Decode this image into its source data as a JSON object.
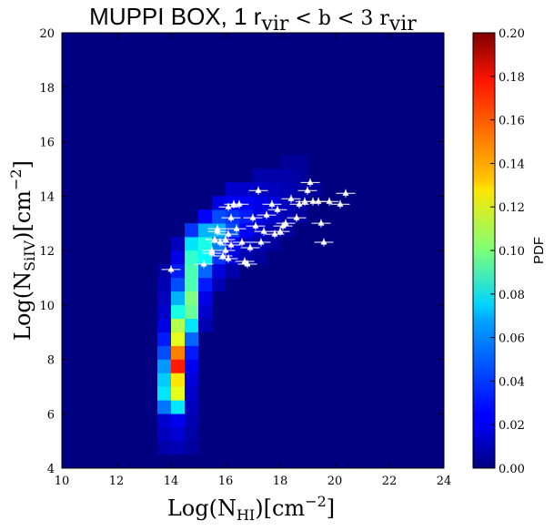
{
  "chart_data": {
    "type": "heatmap",
    "title": "MUPPI BOX, 1 r",
    "title_sub1": "vir",
    "title_mid": " < b < 3 r",
    "title_sub2": "vir",
    "xlabel_main": "Log(N",
    "xlabel_sub": "HI",
    "xlabel_tail": ")[cm",
    "xlabel_sup": "−2",
    "xlabel_close": "]",
    "ylabel_main": "Log(N",
    "ylabel_sub": "SiIV",
    "ylabel_tail": ")[cm",
    "ylabel_sup": "−2",
    "ylabel_close": "]",
    "xlim": [
      10,
      24
    ],
    "ylim": [
      4,
      20
    ],
    "xticks": [
      "10",
      "12",
      "14",
      "16",
      "18",
      "20",
      "22",
      "24"
    ],
    "yticks": [
      "4",
      "6",
      "8",
      "10",
      "12",
      "14",
      "16",
      "18",
      "20"
    ],
    "colorbar": {
      "label": "PDF",
      "range": [
        0.0,
        0.2
      ],
      "ticks": [
        "0.00",
        "0.02",
        "0.04",
        "0.06",
        "0.08",
        "0.10",
        "0.12",
        "0.14",
        "0.16",
        "0.18",
        "0.20"
      ]
    },
    "bin_width_x": 0.5,
    "bin_width_y": 0.5,
    "background_value": 0.0,
    "cells": [
      [
        13.5,
        4.5,
        0.008
      ],
      [
        14.0,
        4.5,
        0.01
      ],
      [
        14.5,
        4.5,
        0.006
      ],
      [
        13.5,
        5.0,
        0.012
      ],
      [
        14.0,
        5.0,
        0.016
      ],
      [
        14.5,
        5.0,
        0.008
      ],
      [
        13.5,
        5.5,
        0.016
      ],
      [
        14.0,
        5.5,
        0.022
      ],
      [
        14.5,
        5.5,
        0.01
      ],
      [
        13.5,
        6.0,
        0.048
      ],
      [
        14.0,
        6.0,
        0.07
      ],
      [
        14.5,
        6.0,
        0.012
      ],
      [
        13.5,
        6.5,
        0.07
      ],
      [
        14.0,
        6.5,
        0.12
      ],
      [
        14.5,
        6.5,
        0.015
      ],
      [
        13.5,
        7.0,
        0.065
      ],
      [
        14.0,
        7.0,
        0.13
      ],
      [
        14.5,
        7.0,
        0.018
      ],
      [
        13.5,
        7.5,
        0.055
      ],
      [
        14.0,
        7.5,
        0.17
      ],
      [
        14.5,
        7.5,
        0.022
      ],
      [
        13.5,
        8.0,
        0.04
      ],
      [
        14.0,
        8.0,
        0.15
      ],
      [
        14.5,
        8.0,
        0.03
      ],
      [
        13.5,
        8.5,
        0.03
      ],
      [
        14.0,
        8.5,
        0.12
      ],
      [
        14.5,
        8.5,
        0.045
      ],
      [
        13.5,
        9.0,
        0.02
      ],
      [
        14.0,
        9.0,
        0.11
      ],
      [
        14.5,
        9.0,
        0.07
      ],
      [
        15.0,
        9.0,
        0.01
      ],
      [
        13.5,
        9.5,
        0.015
      ],
      [
        14.0,
        9.5,
        0.08
      ],
      [
        14.5,
        9.5,
        0.095
      ],
      [
        15.0,
        9.5,
        0.015
      ],
      [
        13.5,
        10.0,
        0.012
      ],
      [
        14.0,
        10.0,
        0.06
      ],
      [
        14.5,
        10.0,
        0.1
      ],
      [
        15.0,
        10.0,
        0.02
      ],
      [
        13.5,
        10.5,
        0.01
      ],
      [
        14.0,
        10.5,
        0.04
      ],
      [
        14.5,
        10.5,
        0.09
      ],
      [
        15.0,
        10.5,
        0.03
      ],
      [
        15.5,
        10.5,
        0.01
      ],
      [
        13.5,
        11.0,
        0.008
      ],
      [
        14.0,
        11.0,
        0.03
      ],
      [
        14.5,
        11.0,
        0.09
      ],
      [
        15.0,
        11.0,
        0.045
      ],
      [
        15.5,
        11.0,
        0.018
      ],
      [
        16.0,
        11.0,
        0.008
      ],
      [
        14.0,
        11.5,
        0.02
      ],
      [
        14.5,
        11.5,
        0.085
      ],
      [
        15.0,
        11.5,
        0.075
      ],
      [
        15.5,
        11.5,
        0.035
      ],
      [
        16.0,
        11.5,
        0.018
      ],
      [
        16.5,
        11.5,
        0.01
      ],
      [
        17.0,
        11.5,
        0.006
      ],
      [
        14.0,
        12.0,
        0.012
      ],
      [
        14.5,
        12.0,
        0.07
      ],
      [
        15.0,
        12.0,
        0.08
      ],
      [
        15.5,
        12.0,
        0.05
      ],
      [
        16.0,
        12.0,
        0.025
      ],
      [
        16.5,
        12.0,
        0.015
      ],
      [
        17.0,
        12.0,
        0.01
      ],
      [
        17.5,
        12.0,
        0.006
      ],
      [
        14.5,
        12.5,
        0.035
      ],
      [
        15.0,
        12.5,
        0.06
      ],
      [
        15.5,
        12.5,
        0.06
      ],
      [
        16.0,
        12.5,
        0.04
      ],
      [
        16.5,
        12.5,
        0.025
      ],
      [
        17.0,
        12.5,
        0.015
      ],
      [
        17.5,
        12.5,
        0.01
      ],
      [
        18.0,
        12.5,
        0.006
      ],
      [
        15.0,
        13.0,
        0.025
      ],
      [
        15.5,
        13.0,
        0.04
      ],
      [
        16.0,
        13.0,
        0.035
      ],
      [
        16.5,
        13.0,
        0.03
      ],
      [
        17.0,
        13.0,
        0.02
      ],
      [
        17.5,
        13.0,
        0.015
      ],
      [
        18.0,
        13.0,
        0.01
      ],
      [
        18.5,
        13.0,
        0.006
      ],
      [
        15.5,
        13.5,
        0.02
      ],
      [
        16.0,
        13.5,
        0.025
      ],
      [
        16.5,
        13.5,
        0.025
      ],
      [
        17.0,
        13.5,
        0.02
      ],
      [
        17.5,
        13.5,
        0.018
      ],
      [
        18.0,
        13.5,
        0.012
      ],
      [
        18.5,
        13.5,
        0.008
      ],
      [
        16.0,
        14.0,
        0.015
      ],
      [
        16.5,
        14.0,
        0.015
      ],
      [
        17.0,
        14.0,
        0.014
      ],
      [
        17.5,
        14.0,
        0.012
      ],
      [
        18.0,
        14.0,
        0.01
      ],
      [
        18.5,
        14.0,
        0.008
      ],
      [
        19.0,
        14.0,
        0.006
      ],
      [
        17.0,
        14.5,
        0.008
      ],
      [
        17.5,
        14.5,
        0.008
      ],
      [
        18.0,
        14.5,
        0.008
      ],
      [
        18.5,
        14.5,
        0.006
      ],
      [
        18.0,
        15.0,
        0.005
      ],
      [
        18.5,
        15.0,
        0.005
      ]
    ],
    "points": [
      [
        14.0,
        11.3
      ],
      [
        15.2,
        11.5
      ],
      [
        15.5,
        11.9
      ],
      [
        15.5,
        12.0
      ],
      [
        15.6,
        12.4
      ],
      [
        15.7,
        12.8
      ],
      [
        15.8,
        12.3
      ],
      [
        15.9,
        11.8
      ],
      [
        16.0,
        12.0
      ],
      [
        16.0,
        12.4
      ],
      [
        16.1,
        11.7
      ],
      [
        16.1,
        12.6
      ],
      [
        16.2,
        12.2
      ],
      [
        16.2,
        13.2
      ],
      [
        16.3,
        13.7
      ],
      [
        16.4,
        12.8
      ],
      [
        16.5,
        13.7
      ],
      [
        16.6,
        12.3
      ],
      [
        16.7,
        11.6
      ],
      [
        16.8,
        11.5
      ],
      [
        16.9,
        12.1
      ],
      [
        17.0,
        13.2
      ],
      [
        17.1,
        12.9
      ],
      [
        17.2,
        14.2
      ],
      [
        17.3,
        12.3
      ],
      [
        17.4,
        12.7
      ],
      [
        17.5,
        13.3
      ],
      [
        17.7,
        13.7
      ],
      [
        17.8,
        12.6
      ],
      [
        17.9,
        13.5
      ],
      [
        18.0,
        12.7
      ],
      [
        18.1,
        12.9
      ],
      [
        18.2,
        13.0
      ],
      [
        18.4,
        13.9
      ],
      [
        18.6,
        13.2
      ],
      [
        18.7,
        13.7
      ],
      [
        18.9,
        13.8
      ],
      [
        19.0,
        14.2
      ],
      [
        19.1,
        14.5
      ],
      [
        19.2,
        13.8
      ],
      [
        19.4,
        13.8
      ],
      [
        19.5,
        13.0
      ],
      [
        19.6,
        12.3
      ],
      [
        19.8,
        13.8
      ],
      [
        20.2,
        13.7
      ],
      [
        20.4,
        14.1
      ],
      [
        16.1,
        13.6
      ],
      [
        15.7,
        12.7
      ]
    ],
    "xerr": 0.35,
    "yerr": 0.15
  }
}
